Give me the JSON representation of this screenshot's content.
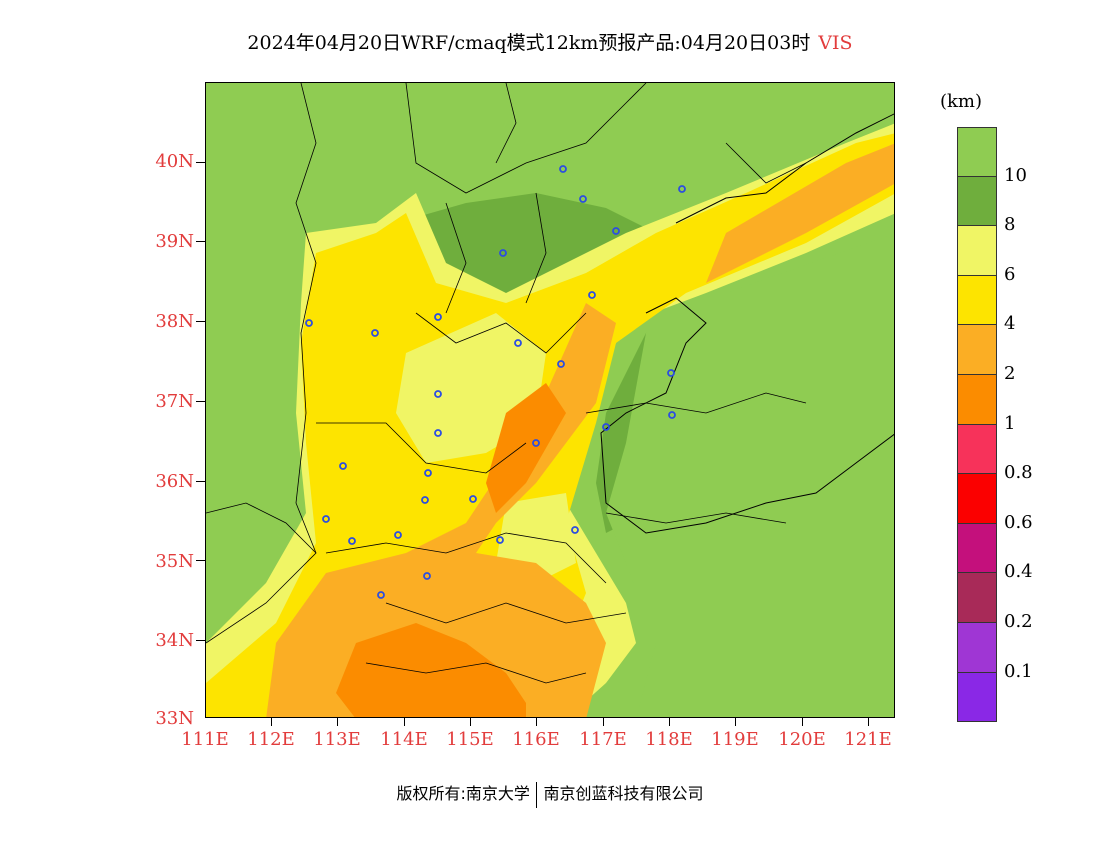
{
  "title": {
    "text": "2024年04月20日WRF/cmaq模式12km预报产品:04月20日03时",
    "variable": "VIS"
  },
  "map": {
    "lat_labels": [
      "40N",
      "39N",
      "38N",
      "37N",
      "36N",
      "35N",
      "34N",
      "33N"
    ],
    "lon_labels": [
      "111E",
      "112E",
      "113E",
      "114E",
      "115E",
      "116E",
      "117E",
      "118E",
      "119E",
      "120E",
      "121E"
    ],
    "lon_range": [
      111.0,
      121.4
    ],
    "lat_range": [
      33.0,
      41.0
    ],
    "station_marker_color": "#2c4ee0"
  },
  "legend": {
    "unit": "(km)",
    "colors": [
      "#8fcc52",
      "#6fae3d",
      "#f0f565",
      "#fde400",
      "#fbae24",
      "#fb8c00",
      "#f7325a",
      "#fb0000",
      "#c4107c",
      "#a82a58",
      "#9f36d4",
      "#8a28e6"
    ],
    "labels": [
      "10",
      "8",
      "6",
      "4",
      "2",
      "1",
      "0.8",
      "0.6",
      "0.4",
      "0.2",
      "0.1"
    ]
  },
  "footer": {
    "left": "版权所有:南京大学",
    "right": "南京创蓝科技有限公司"
  }
}
